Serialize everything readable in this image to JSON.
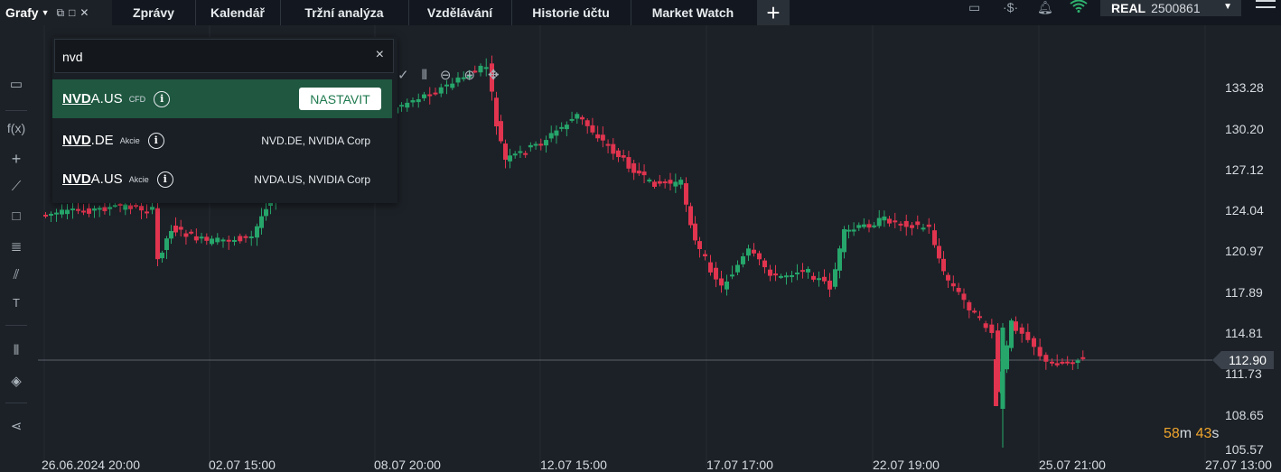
{
  "topbar": {
    "grafy_label": "Grafy",
    "tabs": [
      "Zprávy",
      "Kalendář",
      "Tržní analýza",
      "Vzdělávání",
      "Historie účtu",
      "Market Watch"
    ],
    "plus": "+",
    "account_type": "REAL",
    "account_number": "2500861"
  },
  "search": {
    "query": "nvd",
    "clear": "×",
    "results": [
      {
        "match": "NVD",
        "rest": "A.US",
        "type": "CFD",
        "desc": "",
        "action": "NASTAVIT",
        "selected": true
      },
      {
        "match": "NVD",
        "rest": ".DE",
        "type": "Akcie",
        "desc": "NVD.DE, NVIDIA Corp",
        "selected": false
      },
      {
        "match": "NVD",
        "rest": "A.US",
        "type": "Akcie",
        "desc": "NVDA.US, NVIDIA Corp",
        "selected": false
      }
    ]
  },
  "chart": {
    "price_labels": [
      "133.28",
      "130.20",
      "127.12",
      "124.04",
      "120.97",
      "117.89",
      "114.81",
      "111.73",
      "108.65",
      "105.57"
    ],
    "time_labels": [
      "26.06.2024 20:00",
      "02.07 15:00",
      "08.07 20:00",
      "12.07 15:00",
      "17.07 17:00",
      "22.07 19:00",
      "25.07 21:00",
      "27.07 13:00"
    ],
    "current_price": "112.90",
    "countdown": {
      "minutes": "58",
      "m": "m",
      "seconds": "43",
      "s": "s"
    },
    "colors": {
      "up": "#26a66b",
      "down": "#e0344f",
      "background": "#1c2127",
      "grid": "#262c33"
    }
  },
  "chart_data": {
    "type": "candlestick",
    "y_ticks": [
      133.28,
      130.2,
      127.12,
      124.04,
      120.97,
      117.89,
      114.81,
      111.73,
      108.65,
      105.57
    ],
    "x_tick_labels": [
      "26.06.2024 20:00",
      "02.07 15:00",
      "08.07 20:00",
      "12.07 15:00",
      "17.07 17:00",
      "22.07 19:00",
      "25.07 21:00",
      "27.07 13:00"
    ],
    "last_price": 112.9
  }
}
